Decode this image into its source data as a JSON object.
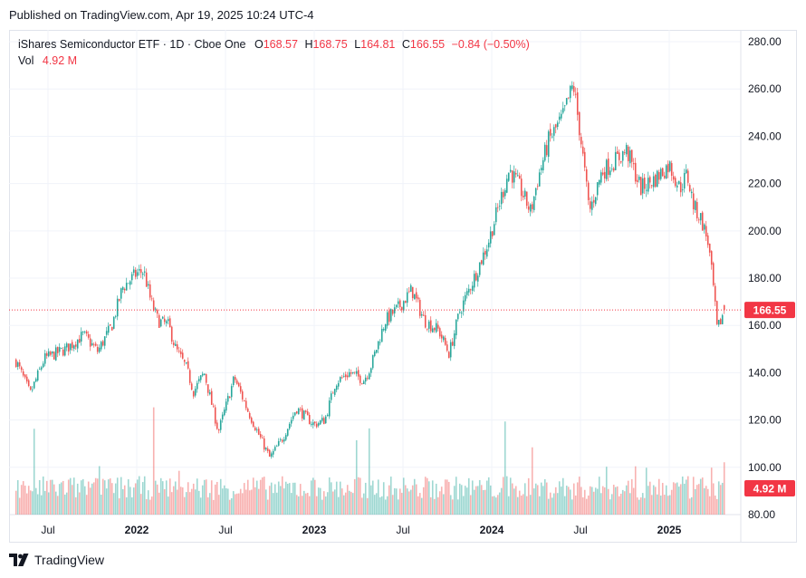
{
  "published": "Published on TradingView.com, Apr 19, 2025 10:24 UTC-4",
  "legend": {
    "symbol": "iShares Semiconductor ETF · 1D · Cboe One",
    "o_label": "O",
    "o_value": "168.57",
    "h_label": "H",
    "h_value": "168.75",
    "l_label": "L",
    "l_value": "164.81",
    "c_label": "C",
    "c_value": "166.55",
    "change": "−0.84 (−0.50%)",
    "vol_label": "Vol",
    "vol_value": "4.92 M"
  },
  "footer": {
    "brand": "TradingView"
  },
  "colors": {
    "up": "#26a69a",
    "down": "#ef5350",
    "price_line": "#f23645",
    "grid": "#f0f3fa",
    "axis_text": "#131722"
  },
  "chart_data": {
    "type": "candlestick",
    "title": "iShares Semiconductor ETF · 1D · Cboe One",
    "ylim": [
      80,
      285
    ],
    "y_ticks": [
      "280.00",
      "260.00",
      "240.00",
      "220.00",
      "200.00",
      "180.00",
      "160.00",
      "140.00",
      "120.00",
      "100.00",
      "80.00"
    ],
    "x_ticks": [
      {
        "label": "Jul",
        "t": 0.0,
        "bold": false
      },
      {
        "label": "2022",
        "t": 0.5,
        "bold": true
      },
      {
        "label": "Jul",
        "t": 1.0,
        "bold": false
      },
      {
        "label": "2023",
        "t": 1.5,
        "bold": true
      },
      {
        "label": "Jul",
        "t": 2.0,
        "bold": false
      },
      {
        "label": "2024",
        "t": 2.5,
        "bold": true
      },
      {
        "label": "Jul",
        "t": 3.0,
        "bold": false
      },
      {
        "label": "2025",
        "t": 3.5,
        "bold": true
      }
    ],
    "t_start": -0.18,
    "t_end": 3.81,
    "price_path": [
      [
        -0.18,
        145
      ],
      [
        -0.1,
        131
      ],
      [
        -0.02,
        146
      ],
      [
        0.1,
        150
      ],
      [
        0.2,
        156
      ],
      [
        0.28,
        149
      ],
      [
        0.36,
        160
      ],
      [
        0.42,
        176
      ],
      [
        0.5,
        182
      ],
      [
        0.54,
        183
      ],
      [
        0.58,
        170
      ],
      [
        0.62,
        162
      ],
      [
        0.68,
        160
      ],
      [
        0.72,
        150
      ],
      [
        0.78,
        142
      ],
      [
        0.82,
        132
      ],
      [
        0.88,
        140
      ],
      [
        0.96,
        115
      ],
      [
        1.05,
        138
      ],
      [
        1.12,
        125
      ],
      [
        1.18,
        115
      ],
      [
        1.25,
        104
      ],
      [
        1.32,
        112
      ],
      [
        1.4,
        125
      ],
      [
        1.5,
        118
      ],
      [
        1.56,
        120
      ],
      [
        1.62,
        136
      ],
      [
        1.7,
        140
      ],
      [
        1.78,
        137
      ],
      [
        1.82,
        143
      ],
      [
        1.9,
        162
      ],
      [
        1.98,
        168
      ],
      [
        2.05,
        175
      ],
      [
        2.12,
        162
      ],
      [
        2.2,
        158
      ],
      [
        2.26,
        148
      ],
      [
        2.32,
        166
      ],
      [
        2.4,
        180
      ],
      [
        2.48,
        195
      ],
      [
        2.56,
        216
      ],
      [
        2.6,
        226
      ],
      [
        2.66,
        218
      ],
      [
        2.72,
        208
      ],
      [
        2.76,
        222
      ],
      [
        2.82,
        238
      ],
      [
        2.9,
        248
      ],
      [
        2.96,
        262
      ],
      [
        3.0,
        240
      ],
      [
        3.05,
        208
      ],
      [
        3.12,
        225
      ],
      [
        3.2,
        230
      ],
      [
        3.26,
        234
      ],
      [
        3.34,
        218
      ],
      [
        3.42,
        222
      ],
      [
        3.5,
        228
      ],
      [
        3.56,
        218
      ],
      [
        3.6,
        224
      ],
      [
        3.64,
        210
      ],
      [
        3.68,
        205
      ],
      [
        3.72,
        195
      ],
      [
        3.75,
        175
      ],
      [
        3.77,
        158
      ],
      [
        3.79,
        162
      ],
      [
        3.81,
        166.55
      ]
    ],
    "last": {
      "open": 168.57,
      "high": 168.75,
      "low": 164.81,
      "close": 166.55,
      "label": "166.55"
    },
    "volume": {
      "last_label": "4.92 M",
      "last_millions": 4.92,
      "typical_millions": 2.5,
      "max_millions": 11.5
    }
  }
}
